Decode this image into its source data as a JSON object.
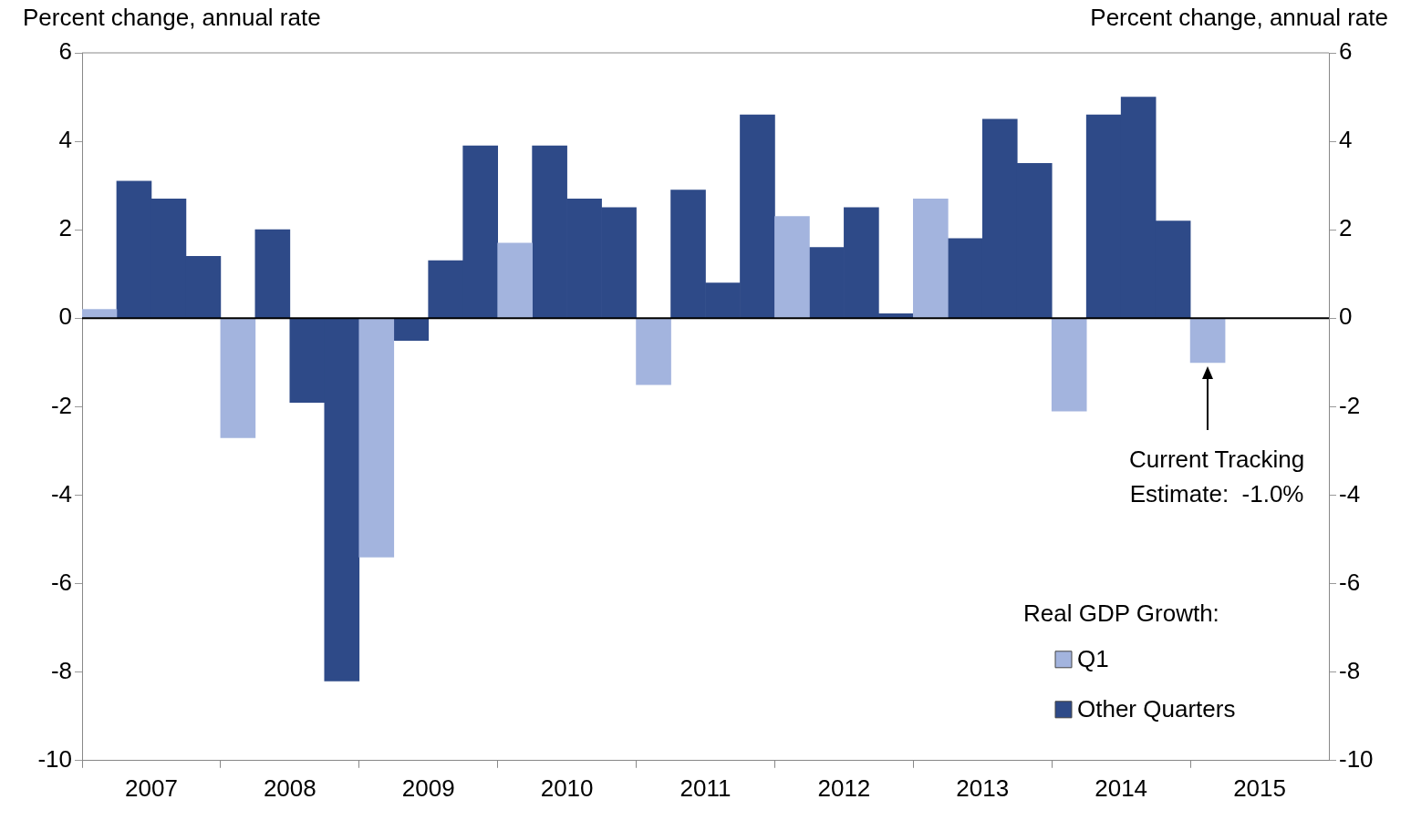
{
  "chart_data": {
    "type": "bar",
    "categories": [
      null,
      "2007",
      null,
      null,
      null,
      "2008",
      null,
      null,
      null,
      "2009",
      null,
      null,
      null,
      "2010",
      null,
      null,
      null,
      "2011",
      null,
      null,
      null,
      "2012",
      null,
      null,
      null,
      "2013",
      null,
      null,
      null,
      "2014",
      null,
      null,
      null,
      "2015",
      null,
      null
    ],
    "series": [
      {
        "name": "Q1",
        "color": "#a3b4de",
        "values": [
          0.2,
          null,
          null,
          null,
          -2.7,
          null,
          null,
          null,
          -5.4,
          null,
          null,
          null,
          1.7,
          null,
          null,
          null,
          -1.5,
          null,
          null,
          null,
          2.3,
          null,
          null,
          null,
          2.7,
          null,
          null,
          null,
          -2.1,
          null,
          null,
          null,
          -1.0,
          null,
          null,
          null
        ]
      },
      {
        "name": "Other Quarters",
        "color": "#2e4a88",
        "values": [
          null,
          3.1,
          2.7,
          1.4,
          null,
          2.0,
          -1.9,
          -8.2,
          null,
          -0.5,
          1.3,
          3.9,
          null,
          3.9,
          2.7,
          2.5,
          null,
          2.9,
          0.8,
          4.6,
          null,
          1.6,
          2.5,
          0.1,
          null,
          1.8,
          4.5,
          3.5,
          null,
          4.6,
          5.0,
          2.2,
          null,
          null,
          null,
          null
        ]
      }
    ],
    "ylabel": "Percent change, annual rate",
    "y2label": "Percent change, annual rate",
    "ylim": [
      -10,
      6
    ],
    "yticks": [
      -10,
      -8,
      -6,
      -4,
      -2,
      0,
      2,
      4,
      6
    ],
    "y2lim": [
      -10,
      6
    ],
    "y2ticks": [
      -10,
      -8,
      -6,
      -4,
      -2,
      0,
      2,
      4,
      6
    ],
    "ref_lines": [
      {
        "axis": "y",
        "value": 0,
        "color": "#000000"
      }
    ],
    "legend": "bottom right",
    "legend_title": "Real GDP Growth:",
    "grid": false,
    "annotations": [
      "Current Tracking Estimate:  -1.0%"
    ]
  }
}
